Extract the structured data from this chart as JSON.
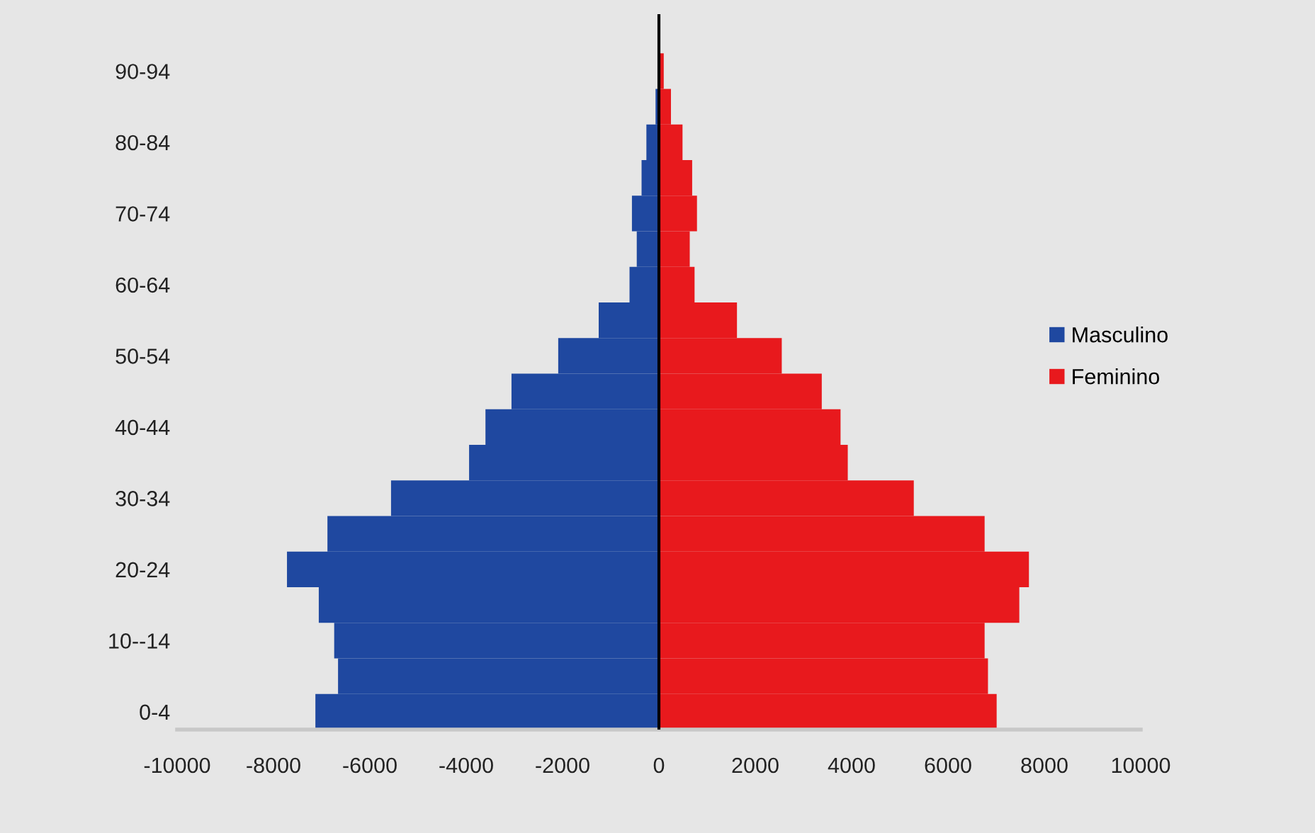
{
  "chart_data": {
    "type": "bar",
    "orientation": "horizontal",
    "stacked": true,
    "categories": [
      "90-94",
      null,
      "80-84",
      null,
      "70-74",
      null,
      "60-64",
      null,
      "50-54",
      null,
      "40-44",
      null,
      "30-34",
      null,
      "20-24",
      null,
      "10--14",
      null,
      "0-4"
    ],
    "series": [
      {
        "name": "Masculino",
        "color": "#1f48a0",
        "values": [
          null,
          -70,
          -260,
          -360,
          -560,
          -460,
          -610,
          -1250,
          -2090,
          -3060,
          -3600,
          -3940,
          -5560,
          -6880,
          -7720,
          -7060,
          -6740,
          -6660,
          -7130
        ]
      },
      {
        "name": "Feminino",
        "color": "#e8191d",
        "values": [
          100,
          250,
          490,
          690,
          790,
          640,
          740,
          1620,
          2550,
          3380,
          3770,
          3920,
          5290,
          6760,
          7680,
          7480,
          6760,
          6830,
          7010
        ]
      }
    ],
    "xlim": [
      -10000,
      10000
    ],
    "xticks": [
      -10000,
      -8000,
      -6000,
      -4000,
      -2000,
      0,
      2000,
      4000,
      6000,
      8000,
      10000
    ],
    "ref_lines": [
      {
        "axis": "x",
        "value": 0,
        "color": "#000000"
      }
    ],
    "grid": false,
    "legend": "right"
  }
}
